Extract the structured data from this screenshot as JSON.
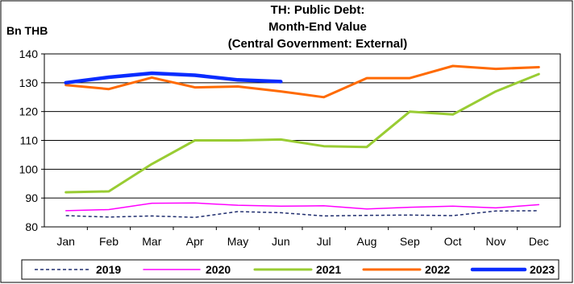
{
  "chart_data": {
    "type": "line",
    "title_lines": [
      "TH: Public Debt:",
      "Month-End Value",
      "(Central Government: External)"
    ],
    "unit_label": "Bn THB",
    "categories": [
      "Jan",
      "Feb",
      "Mar",
      "Apr",
      "May",
      "Jun",
      "Jul",
      "Aug",
      "Sep",
      "Oct",
      "Nov",
      "Dec"
    ],
    "ylim": [
      80,
      140
    ],
    "yticks": [
      80,
      90,
      100,
      110,
      120,
      130,
      140
    ],
    "grid": "horizontal",
    "legend_position": "bottom",
    "series": [
      {
        "name": "2019",
        "color": "#1f2d6e",
        "dash": "dashed",
        "values": [
          83.9,
          83.4,
          83.8,
          83.3,
          85.3,
          84.9,
          83.8,
          84.0,
          84.1,
          83.9,
          85.5,
          85.6
        ]
      },
      {
        "name": "2020",
        "color": "#ff00ff",
        "dash": "solid",
        "values": [
          85.6,
          86.0,
          88.2,
          88.3,
          87.5,
          87.2,
          87.3,
          86.2,
          86.8,
          87.2,
          86.6,
          87.7
        ]
      },
      {
        "name": "2021",
        "color": "#99cc33",
        "dash": "solid",
        "values": [
          92.0,
          92.3,
          101.8,
          110.0,
          110.0,
          110.3,
          108.0,
          107.7,
          120.0,
          119.0,
          127.0,
          133.0
        ]
      },
      {
        "name": "2022",
        "color": "#ff6a00",
        "dash": "solid",
        "values": [
          129.2,
          127.8,
          131.8,
          128.4,
          128.7,
          127.0,
          125.0,
          131.6,
          131.6,
          135.8,
          134.8,
          135.4
        ]
      },
      {
        "name": "2023",
        "color": "#0a2cff",
        "dash": "solid",
        "values": [
          130.0,
          131.9,
          133.3,
          132.6,
          131.0,
          130.4,
          null,
          null,
          null,
          null,
          null,
          null
        ]
      }
    ]
  }
}
